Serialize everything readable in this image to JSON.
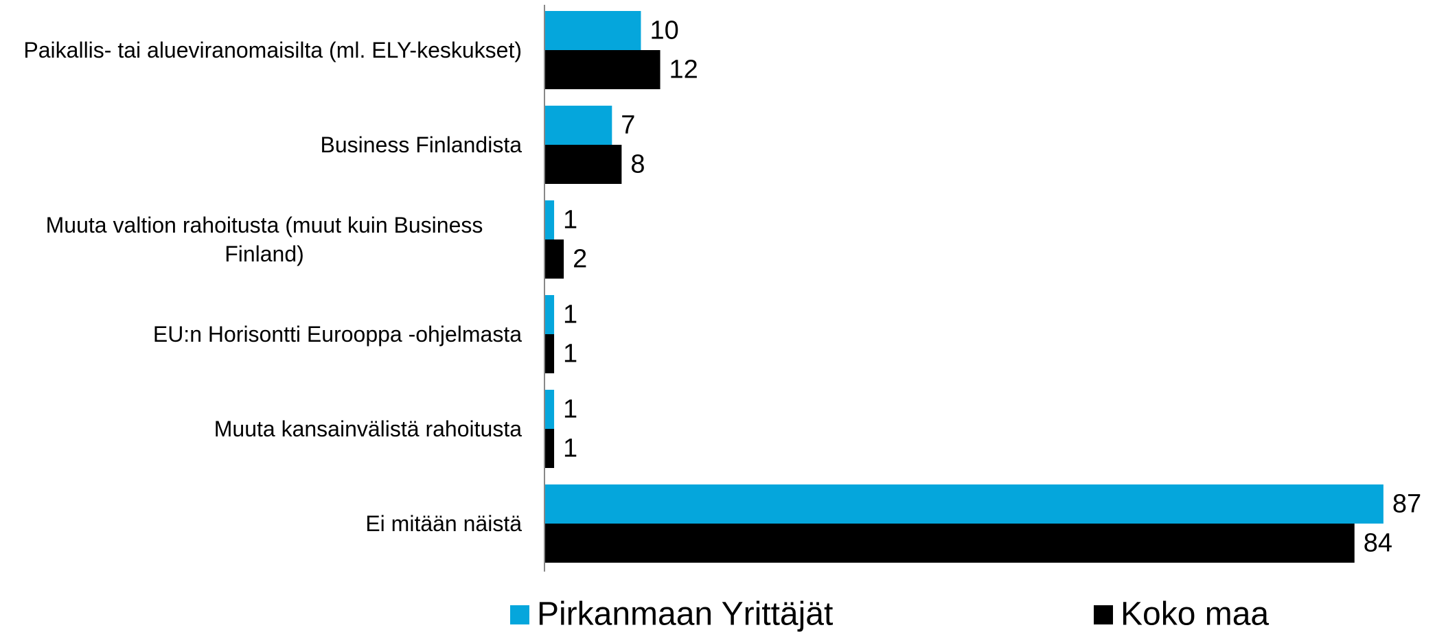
{
  "chart_data": {
    "type": "bar",
    "orientation": "horizontal",
    "categories": [
      "Paikallis- tai alueviranomaisilta (ml. ELY-keskukset)",
      "Business Finlandista",
      "Muuta valtion rahoitusta (muut kuin Business Finland)",
      "EU:n Horisontti Eurooppa -ohjelmasta",
      "Muuta kansainvälistä rahoitusta",
      "Ei mitään näistä"
    ],
    "series": [
      {
        "name": "Pirkanmaan Yrittäjät",
        "color": "#05a6dc",
        "values": [
          10,
          7,
          1,
          1,
          1,
          87
        ]
      },
      {
        "name": "Koko maa",
        "color": "#000000",
        "values": [
          12,
          8,
          2,
          1,
          1,
          84
        ]
      }
    ],
    "xlim": [
      0,
      90
    ],
    "legend": "bottom"
  }
}
